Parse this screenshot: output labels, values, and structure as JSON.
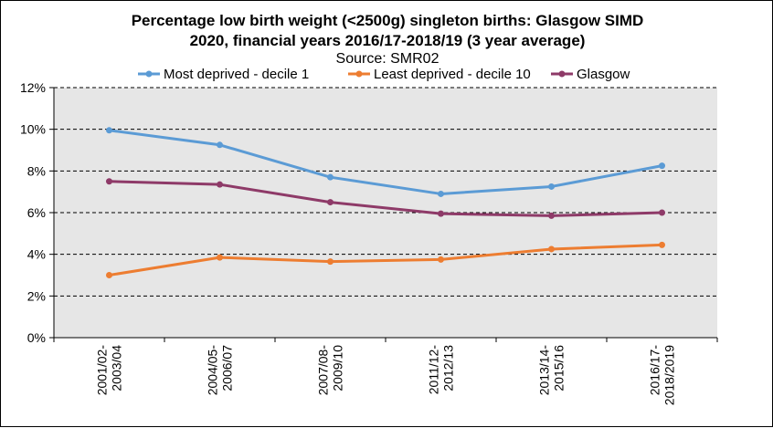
{
  "chart_data": {
    "type": "line",
    "title_line1": "Percentage low birth weight (<2500g) singleton births: Glasgow SIMD",
    "title_line2": "2020, financial years 2016/17-2018/19 (3 year average)",
    "subtitle": "Source: SMR02",
    "categories": [
      [
        "2001/02-",
        "2003/04"
      ],
      [
        "2004/05-",
        "2006/07"
      ],
      [
        "2007/08-",
        "2009/10"
      ],
      [
        "2011/12-",
        "2012/13"
      ],
      [
        "2013/14-",
        "2015/16"
      ],
      [
        "2016/17-",
        "2018/2019"
      ]
    ],
    "series": [
      {
        "name": "Most deprived - decile 1",
        "color": "#5B9BD5",
        "values": [
          9.95,
          9.25,
          7.7,
          6.9,
          7.25,
          8.25
        ]
      },
      {
        "name": "Least deprived - decile 10",
        "color": "#ED7D31",
        "values": [
          3.0,
          3.85,
          3.65,
          3.75,
          4.25,
          4.45
        ]
      },
      {
        "name": "Glasgow",
        "color": "#8E3A68",
        "values": [
          7.5,
          7.35,
          6.5,
          5.95,
          5.85,
          6.0
        ]
      }
    ],
    "ylim": [
      0,
      12
    ],
    "yticks": [
      0,
      2,
      4,
      6,
      8,
      10,
      12
    ],
    "ytick_suffix": "%",
    "legend_position": "top",
    "grid": true
  }
}
